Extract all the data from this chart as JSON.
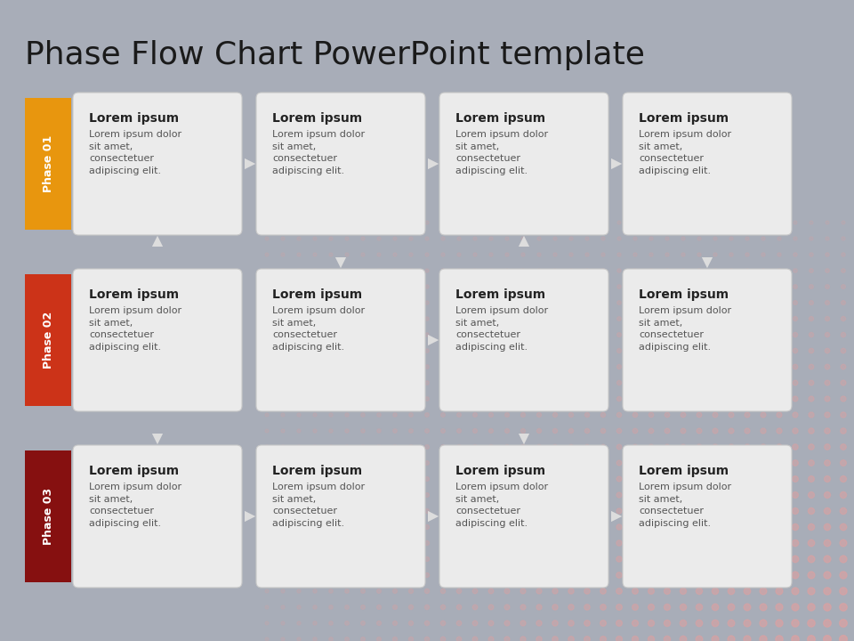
{
  "title": "Phase Flow Chart PowerPoint template",
  "title_fontsize": 26,
  "title_color": "#1a1a1a",
  "bg_color": "#a8adb8",
  "box_bg": "#ebebeb",
  "box_border": "#c8c8c8",
  "box_title": "Lorem ipsum",
  "box_body": "Lorem ipsum dolor\nsit amet,\nconsectetuer\nadipiscing elit.",
  "box_title_color": "#222222",
  "box_body_color": "#555555",
  "phases": [
    {
      "label": "Phase 01",
      "color": "#e8960e"
    },
    {
      "label": "Phase 02",
      "color": "#cc3318"
    },
    {
      "label": "Phase 03",
      "color": "#861010"
    }
  ],
  "n_cols": 4,
  "n_rows": 3,
  "dot_color": "#e0a0a0",
  "arrow_color": "#dddddd"
}
